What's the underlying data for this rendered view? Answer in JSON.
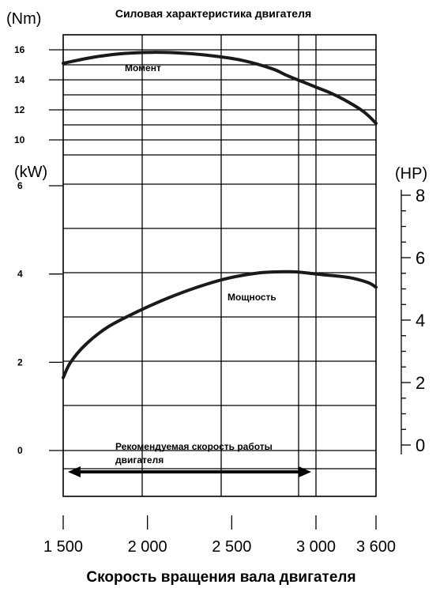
{
  "chart_data": {
    "type": "line",
    "title": "Силовая характеристика двигателя",
    "xlabel": "Скорость вращения вала двигателя",
    "x_ticks": [
      1500,
      2000,
      2500,
      3000,
      3600
    ],
    "x_tick_labels": [
      "1 500",
      "2 000",
      "2 500",
      "3 000",
      "3 600"
    ],
    "xlim": [
      1500,
      3600
    ],
    "grid": true,
    "torque_axis": {
      "unit": "(Nm)",
      "ticks": [
        10,
        12,
        14,
        16
      ],
      "tick_labels": [
        "10",
        "12",
        "14",
        "16"
      ],
      "range": [
        9,
        17
      ]
    },
    "power_axis": {
      "unit": "(kW)",
      "ticks": [
        0,
        2,
        4,
        6
      ],
      "tick_labels": [
        "0",
        "2",
        "4",
        "6"
      ],
      "range": [
        -0.44,
        6.08
      ]
    },
    "hp_axis": {
      "unit": "(HP)",
      "ticks": [
        0,
        2,
        4,
        6,
        8
      ],
      "tick_labels": [
        "0",
        "2",
        "4",
        "6",
        "8"
      ],
      "range": [
        -0.59,
        8.15
      ]
    },
    "series": [
      {
        "name": "Момент",
        "axis": "torque",
        "color": "#1a1a1a",
        "x": [
          1500,
          1700,
          1900,
          2100,
          2300,
          2500,
          2700,
          2900,
          3000,
          3100,
          3200,
          3300,
          3400,
          3500,
          3550,
          3600
        ],
        "y": [
          15.1,
          15.5,
          15.75,
          15.83,
          15.78,
          15.6,
          15.3,
          14.75,
          14.3,
          13.9,
          13.5,
          13.1,
          12.6,
          12.0,
          11.6,
          11.1
        ]
      },
      {
        "name": "Мощность",
        "axis": "power",
        "color": "#1a1a1a",
        "x": [
          1500,
          1550,
          1650,
          1800,
          2000,
          2200,
          2400,
          2600,
          2800,
          2950,
          3050,
          3150,
          3250,
          3350,
          3450,
          3550,
          3600
        ],
        "y": [
          1.65,
          2.0,
          2.4,
          2.8,
          3.15,
          3.45,
          3.7,
          3.9,
          4.02,
          4.05,
          4.05,
          4.02,
          3.98,
          3.95,
          3.9,
          3.8,
          3.7
        ]
      }
    ],
    "annotations": {
      "torque_label": "Момент",
      "power_label": "Мощность",
      "recommended_text_line1": "Рекомендуемая скорость работы",
      "recommended_text_line2": "двигателя",
      "recommended_range": [
        1500,
        3000
      ]
    }
  }
}
